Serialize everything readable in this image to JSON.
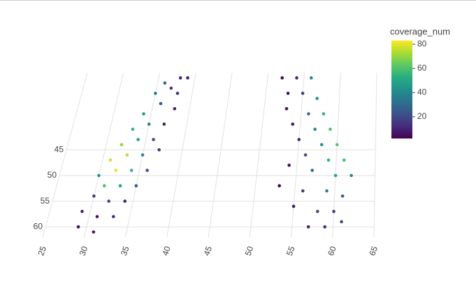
{
  "chart_data": {
    "type": "scatter3d",
    "colorbar_title": "coverage_num",
    "x": [
      38,
      39,
      36,
      37,
      38,
      35,
      36,
      38,
      34,
      35,
      37,
      33,
      34,
      36,
      32,
      33,
      35,
      37,
      31,
      32,
      34,
      36,
      30,
      31,
      33,
      35,
      30,
      32,
      34,
      29,
      31,
      33,
      29,
      31,
      52,
      54,
      56,
      53,
      55,
      57,
      53,
      56,
      58,
      54,
      57,
      59,
      55,
      58,
      60,
      56,
      59,
      61,
      54,
      57,
      60,
      62,
      53,
      56,
      59,
      61,
      55,
      58,
      60,
      57,
      59,
      61
    ],
    "y": [
      31,
      31,
      32,
      33,
      34,
      34,
      36,
      37,
      38,
      40,
      40,
      41,
      43,
      43,
      44,
      46,
      46,
      45,
      47,
      49,
      49,
      49,
      50,
      52,
      52,
      52,
      54,
      55,
      55,
      57,
      58,
      58,
      60,
      61,
      31,
      31,
      31,
      34,
      34,
      35,
      37,
      38,
      38,
      40,
      41,
      41,
      43,
      44,
      44,
      46,
      47,
      47,
      48,
      49,
      50,
      50,
      52,
      53,
      53,
      54,
      56,
      57,
      57,
      60,
      60,
      59
    ],
    "coverage": [
      10,
      8,
      30,
      15,
      12,
      35,
      25,
      8,
      45,
      40,
      10,
      55,
      50,
      20,
      70,
      75,
      40,
      15,
      78,
      80,
      55,
      20,
      45,
      60,
      50,
      25,
      15,
      20,
      10,
      8,
      5,
      12,
      5,
      8,
      3,
      10,
      40,
      5,
      15,
      45,
      5,
      30,
      55,
      8,
      40,
      60,
      10,
      45,
      62,
      20,
      55,
      58,
      5,
      30,
      50,
      40,
      3,
      15,
      35,
      25,
      8,
      20,
      15,
      10,
      12,
      20
    ],
    "xlim": [
      25,
      65
    ],
    "xticks": [
      25,
      30,
      35,
      40,
      45,
      50,
      55,
      60,
      65
    ],
    "ylim": [
      30,
      62
    ],
    "yticks": [
      45,
      50,
      55,
      60
    ],
    "clim": [
      2,
      83
    ],
    "cticks": [
      20,
      40,
      60,
      80
    ],
    "colorscale": [
      "#440154",
      "#472c7a",
      "#3b518b",
      "#2c718e",
      "#21908d",
      "#27ad81",
      "#5cc863",
      "#aadc32",
      "#fde725"
    ],
    "grid": true
  }
}
